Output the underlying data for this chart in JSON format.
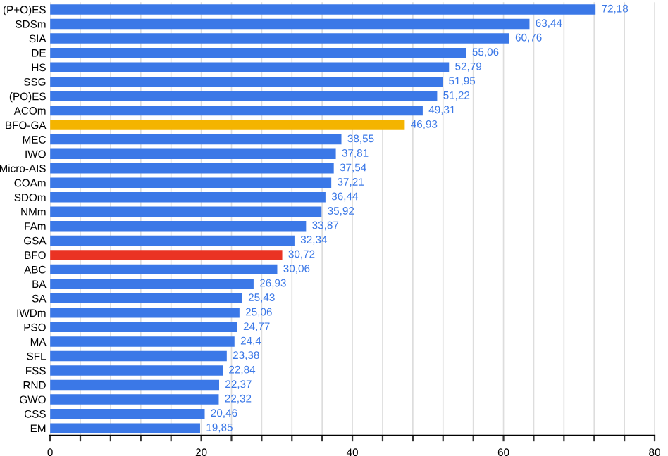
{
  "chart_data": {
    "type": "bar",
    "orientation": "horizontal",
    "categories": [
      "(P+O)ES",
      "SDSm",
      "SIA",
      "DE",
      "HS",
      "SSG",
      "(PO)ES",
      "ACOm",
      "BFO-GA",
      "MEC",
      "IWO",
      "Micro-AIS",
      "COAm",
      "SDOm",
      "NMm",
      "FAm",
      "GSA",
      "BFO",
      "ABC",
      "BA",
      "SA",
      "IWDm",
      "PSO",
      "MA",
      "SFL",
      "FSS",
      "RND",
      "GWO",
      "CSS",
      "EM"
    ],
    "values": [
      72.18,
      63.44,
      60.76,
      55.06,
      52.79,
      51.95,
      51.22,
      49.31,
      46.93,
      38.55,
      37.81,
      37.54,
      37.21,
      36.44,
      35.92,
      33.87,
      32.34,
      30.72,
      30.06,
      26.93,
      25.43,
      25.06,
      24.77,
      24.4,
      23.38,
      22.84,
      22.37,
      22.32,
      20.46,
      19.85
    ],
    "value_labels": [
      "72,18",
      "63,44",
      "60,76",
      "55,06",
      "52,79",
      "51,95",
      "51,22",
      "49,31",
      "46,93",
      "38,55",
      "37,81",
      "37,54",
      "37,21",
      "36,44",
      "35,92",
      "33,87",
      "32,34",
      "30,72",
      "30,06",
      "26,93",
      "25,43",
      "25,06",
      "24,77",
      "24,4",
      "23,38",
      "22,84",
      "22,37",
      "22,32",
      "20,46",
      "19,85"
    ],
    "colors": [
      "#3b78e7",
      "#3b78e7",
      "#3b78e7",
      "#3b78e7",
      "#3b78e7",
      "#3b78e7",
      "#3b78e7",
      "#3b78e7",
      "#f4b400",
      "#3b78e7",
      "#3b78e7",
      "#3b78e7",
      "#3b78e7",
      "#3b78e7",
      "#3b78e7",
      "#3b78e7",
      "#3b78e7",
      "#ea3323",
      "#3b78e7",
      "#3b78e7",
      "#3b78e7",
      "#3b78e7",
      "#3b78e7",
      "#3b78e7",
      "#3b78e7",
      "#3b78e7",
      "#3b78e7",
      "#3b78e7",
      "#3b78e7",
      "#3b78e7"
    ],
    "xlim": [
      0,
      80
    ],
    "xticks": [
      0,
      {
        "value": 4,
        "label": null
      },
      {
        "value": 8,
        "label": null
      },
      {
        "value": 12,
        "label": null
      },
      {
        "value": 16,
        "label": null
      },
      20,
      {
        "value": 24,
        "label": null
      },
      {
        "value": 28,
        "label": null
      },
      {
        "value": 32,
        "label": null
      },
      {
        "value": 36,
        "label": null
      },
      40,
      {
        "value": 44,
        "label": null
      },
      {
        "value": 48,
        "label": null
      },
      {
        "value": 52,
        "label": null
      },
      {
        "value": 56,
        "label": null
      },
      60,
      {
        "value": 64,
        "label": null
      },
      {
        "value": 68,
        "label": null
      },
      {
        "value": 72,
        "label": null
      },
      {
        "value": 76,
        "label": null
      },
      80
    ],
    "grid": "x",
    "legend": false
  }
}
